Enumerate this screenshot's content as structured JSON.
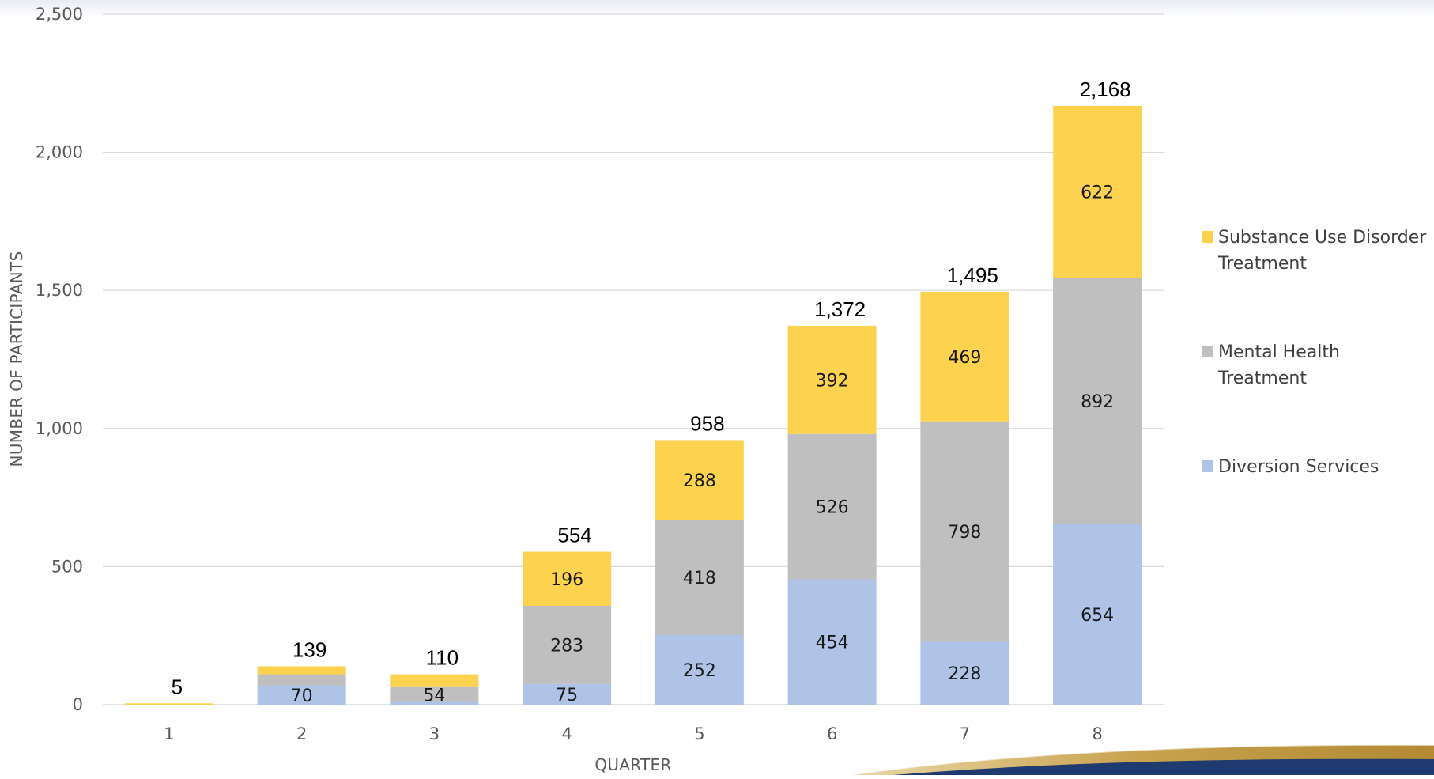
{
  "chart_data": {
    "type": "bar",
    "stacked": true,
    "xlabel": "QUARTER",
    "ylabel": "NUMBER OF PARTICIPANTS",
    "ylim": [
      0,
      2500
    ],
    "yticks": [
      0,
      500,
      1000,
      1500,
      2000,
      2500
    ],
    "ytick_labels": [
      "0",
      "500",
      "1,000",
      "1,500",
      "2,000",
      "2,500"
    ],
    "grid": true,
    "legend_position": "right",
    "categories": [
      "1",
      "2",
      "3",
      "4",
      "5",
      "6",
      "7",
      "8"
    ],
    "series": [
      {
        "name": "Diversion Services",
        "color": "#aec3e6",
        "values": [
          0,
          70,
          10,
          75,
          252,
          454,
          228,
          654
        ],
        "labels": [
          "",
          "70",
          "",
          "75",
          "252",
          "454",
          "228",
          "654"
        ]
      },
      {
        "name": "Mental Health Treatment",
        "color": "#bfbfbf",
        "values": [
          0,
          40,
          54,
          283,
          418,
          526,
          798,
          892
        ],
        "labels": [
          "",
          "",
          "54",
          "283",
          "418",
          "526",
          "798",
          "892"
        ]
      },
      {
        "name": "Substance Use Disorder Treatment",
        "color": "#fdd24e",
        "values": [
          5,
          29,
          46,
          196,
          288,
          392,
          469,
          622
        ],
        "labels": [
          "",
          "",
          "",
          "196",
          "288",
          "392",
          "469",
          "622"
        ]
      }
    ],
    "totals": [
      5,
      139,
      110,
      554,
      958,
      1372,
      1495,
      2168
    ],
    "total_labels": [
      "5",
      "139",
      "110",
      "554",
      "958",
      "1,372",
      "1,495",
      "2,168"
    ],
    "legend": [
      {
        "lines": [
          "Substance Use Disorder",
          "Treatment"
        ],
        "color": "#fdd24e"
      },
      {
        "lines": [
          "Mental Health",
          "Treatment"
        ],
        "color": "#bfbfbf"
      },
      {
        "lines": [
          "Diversion Services"
        ],
        "color": "#aec3e6"
      }
    ]
  }
}
